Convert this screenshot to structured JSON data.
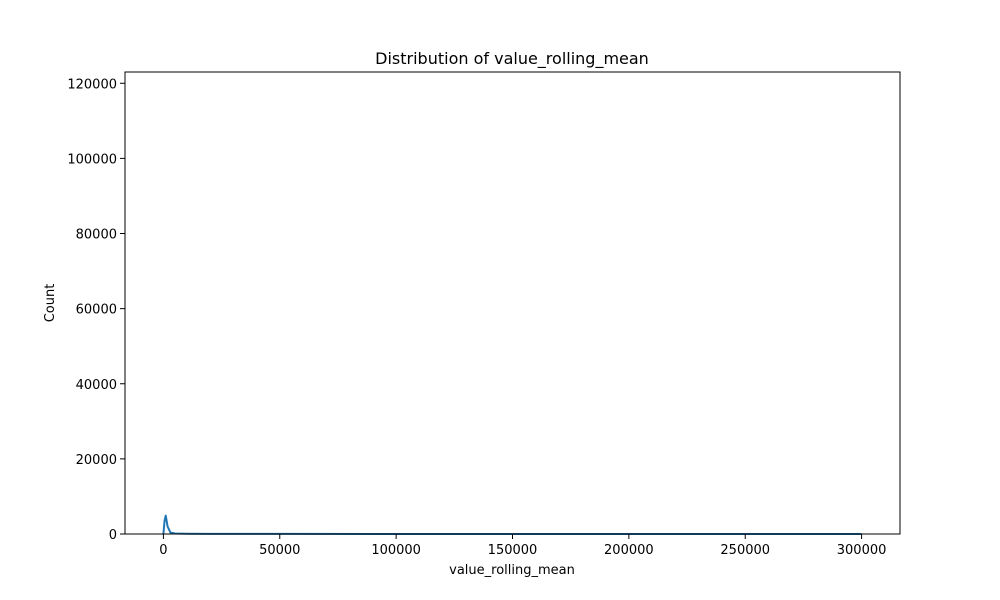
{
  "chart_data": {
    "type": "area",
    "title": "Distribution of value_rolling_mean",
    "xlabel": "value_rolling_mean",
    "ylabel": "Count",
    "xlim": [
      -16500,
      316500
    ],
    "ylim": [
      0,
      123000
    ],
    "xticks": [
      0,
      50000,
      100000,
      150000,
      200000,
      250000,
      300000
    ],
    "yticks": [
      0,
      20000,
      40000,
      60000,
      80000,
      100000,
      120000
    ],
    "grid": false,
    "color": "#1f77b4",
    "series": [
      {
        "x": [
          0,
          500,
          1000,
          1800,
          3000,
          5000,
          10000,
          20000,
          50000,
          100000,
          150000,
          200000,
          250000,
          300000
        ],
        "y": [
          0,
          3500,
          4900,
          2000,
          400,
          150,
          80,
          40,
          20,
          10,
          8,
          5,
          3,
          2
        ]
      }
    ]
  }
}
